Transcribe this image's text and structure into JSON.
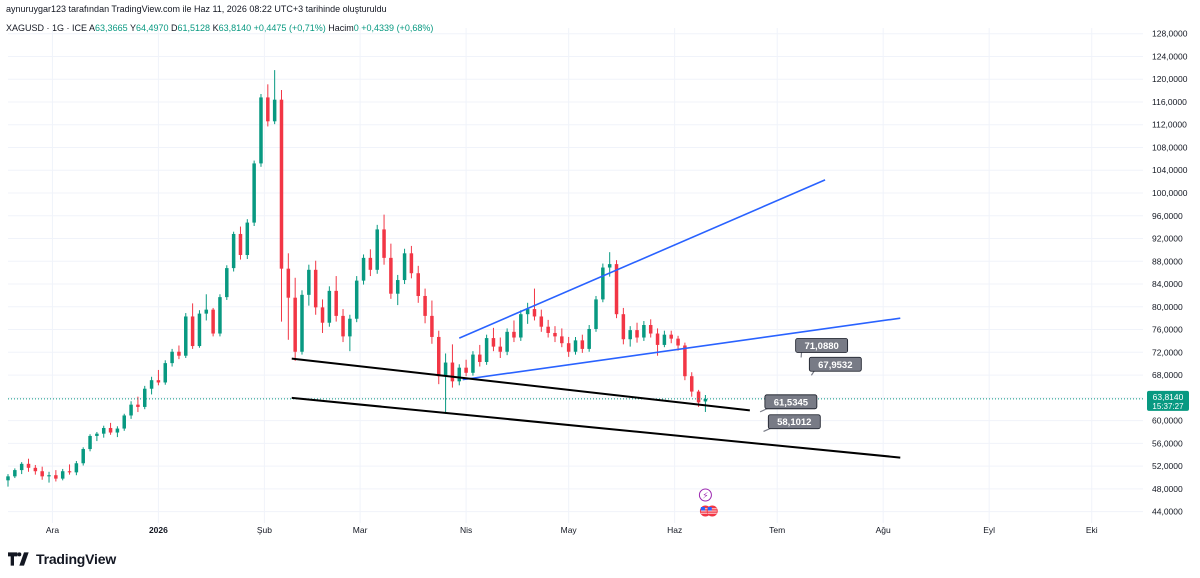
{
  "header": {
    "attribution": "aynuruygar123 tarafından TradingView.com ile Haz 11, 2026 08:22 UTC+3 tarihinde oluşturuldu"
  },
  "quote": {
    "symbol": "XAGUSD · 1G · ICE",
    "open_label": "A",
    "open": "63,3665",
    "high_label": "Y",
    "high": "64,4970",
    "low_label": "D",
    "low": "61,5128",
    "close_label": "K",
    "close": "63,8140",
    "change": "+0,4475 (+0,71%)",
    "volume_label": "Hacim",
    "volume": "0",
    "volume_change": "+0,4339 (+0,68%)"
  },
  "price_tag": {
    "price": "63,8140",
    "countdown": "15:37:27",
    "color": "#089981"
  },
  "brand": {
    "name": "TradingView"
  },
  "colors": {
    "up": "#089981",
    "down": "#f23645",
    "trendline_blue": "#2962ff",
    "trendline_black": "#000000",
    "label_box": "#787b86"
  },
  "chart_data": {
    "type": "candlestick",
    "y_axis": {
      "min": 42,
      "max": 129,
      "position": "right",
      "ticks": [
        "44,0000",
        "48,0000",
        "52,0000",
        "56,0000",
        "60,0000",
        "64,0000",
        "68,0000",
        "72,0000",
        "76,0000",
        "80,0000",
        "84,0000",
        "88,0000",
        "92,0000",
        "96,0000",
        "100,0000",
        "104,0000",
        "108,0000",
        "112,0000",
        "116,0000",
        "120,0000",
        "124,0000",
        "128,0000"
      ],
      "tick_values": [
        44,
        48,
        52,
        56,
        60,
        64,
        68,
        72,
        76,
        80,
        84,
        88,
        92,
        96,
        100,
        104,
        108,
        112,
        116,
        120,
        124,
        128
      ]
    },
    "x_axis": {
      "labels": [
        "Ara",
        "2026",
        "Şub",
        "Mar",
        "Nis",
        "May",
        "Haz",
        "Tem",
        "Ağu",
        "Eyl",
        "Eki"
      ],
      "label_dates": [
        "2025-12-01",
        "2026-01-01",
        "2026-02-01",
        "2026-03-01",
        "2026-04-01",
        "2026-05-01",
        "2026-06-01",
        "2026-07-01",
        "2026-08-01",
        "2026-09-01",
        "2026-10-01"
      ]
    },
    "grid": true,
    "close_price_line": 63.814,
    "candles": [
      [
        "2025-11-18",
        49.5,
        50.6,
        48.4,
        50.2
      ],
      [
        "2025-11-20",
        50.2,
        51.6,
        49.9,
        51.3
      ],
      [
        "2025-11-22",
        51.3,
        52.7,
        50.6,
        52.4
      ],
      [
        "2025-11-24",
        52.4,
        53.3,
        51.0,
        51.7
      ],
      [
        "2025-11-26",
        51.7,
        52.2,
        50.5,
        51.1
      ],
      [
        "2025-11-28",
        51.1,
        51.9,
        49.6,
        50.2
      ],
      [
        "2025-11-30",
        50.2,
        51.0,
        49.1,
        50.4
      ],
      [
        "2025-12-02",
        50.4,
        51.3,
        49.3,
        49.8
      ],
      [
        "2025-12-04",
        49.8,
        51.5,
        49.5,
        51.1
      ],
      [
        "2025-12-06",
        51.1,
        52.3,
        50.5,
        50.9
      ],
      [
        "2025-12-08",
        50.9,
        52.9,
        50.4,
        52.5
      ],
      [
        "2025-12-10",
        52.5,
        55.3,
        52.1,
        55.0
      ],
      [
        "2025-12-12",
        55.0,
        57.6,
        54.6,
        57.3
      ],
      [
        "2025-12-14",
        57.3,
        58.0,
        56.4,
        57.7
      ],
      [
        "2025-12-16",
        57.7,
        59.1,
        57.0,
        58.7
      ],
      [
        "2025-12-18",
        58.7,
        59.6,
        57.5,
        57.9
      ],
      [
        "2025-12-20",
        57.9,
        59.0,
        57.1,
        58.6
      ],
      [
        "2025-12-22",
        58.6,
        61.2,
        58.2,
        60.9
      ],
      [
        "2025-12-24",
        60.9,
        63.4,
        60.3,
        62.8
      ],
      [
        "2025-12-26",
        62.8,
        64.2,
        61.5,
        62.4
      ],
      [
        "2025-12-28",
        62.4,
        66.1,
        62.0,
        65.6
      ],
      [
        "2025-12-30",
        65.6,
        67.7,
        64.6,
        67.1
      ],
      [
        "2026-01-01",
        67.1,
        68.9,
        66.2,
        66.7
      ],
      [
        "2026-01-03",
        66.7,
        70.6,
        66.3,
        70.1
      ],
      [
        "2026-01-05",
        70.1,
        72.6,
        69.5,
        72.1
      ],
      [
        "2026-01-07",
        72.1,
        73.2,
        70.8,
        71.4
      ],
      [
        "2026-01-09",
        71.4,
        78.9,
        71.0,
        78.3
      ],
      [
        "2026-01-11",
        78.3,
        80.6,
        72.6,
        73.1
      ],
      [
        "2026-01-13",
        73.1,
        79.4,
        72.8,
        78.8
      ],
      [
        "2026-01-15",
        78.8,
        82.2,
        77.6,
        79.5
      ],
      [
        "2026-01-17",
        79.5,
        79.8,
        74.8,
        75.3
      ],
      [
        "2026-01-19",
        75.3,
        82.2,
        74.8,
        81.7
      ],
      [
        "2026-01-21",
        81.7,
        87.3,
        81.2,
        86.8
      ],
      [
        "2026-01-23",
        86.8,
        93.2,
        86.2,
        92.8
      ],
      [
        "2026-01-25",
        92.8,
        94.1,
        88.3,
        89.1
      ],
      [
        "2026-01-27",
        89.1,
        95.4,
        88.4,
        94.8
      ],
      [
        "2026-01-29",
        94.8,
        105.7,
        94.2,
        105.2
      ],
      [
        "2026-01-31",
        105.2,
        117.4,
        104.6,
        116.8
      ],
      [
        "2026-02-02",
        116.8,
        119.1,
        111.7,
        112.6
      ],
      [
        "2026-02-04",
        112.6,
        121.6,
        112.1,
        116.4
      ],
      [
        "2026-02-06",
        116.4,
        118.1,
        77.4,
        86.7
      ],
      [
        "2026-02-08",
        86.7,
        89.4,
        74.2,
        81.6
      ],
      [
        "2026-02-10",
        81.6,
        85.1,
        70.5,
        72.1
      ],
      [
        "2026-02-12",
        72.1,
        82.9,
        71.6,
        82.1
      ],
      [
        "2026-02-14",
        82.1,
        87.4,
        80.2,
        86.5
      ],
      [
        "2026-02-16",
        86.5,
        88.1,
        78.6,
        79.9
      ],
      [
        "2026-02-18",
        79.9,
        81.3,
        75.4,
        77.2
      ],
      [
        "2026-02-20",
        77.2,
        83.6,
        76.5,
        82.8
      ],
      [
        "2026-02-22",
        82.8,
        85.4,
        77.4,
        78.4
      ],
      [
        "2026-02-24",
        78.4,
        79.6,
        73.8,
        74.8
      ],
      [
        "2026-02-26",
        74.8,
        78.6,
        72.2,
        77.9
      ],
      [
        "2026-02-28",
        77.9,
        85.4,
        77.3,
        84.6
      ],
      [
        "2026-03-02",
        84.6,
        89.2,
        83.9,
        88.6
      ],
      [
        "2026-03-04",
        88.6,
        90.1,
        85.4,
        86.5
      ],
      [
        "2026-03-06",
        86.5,
        94.4,
        85.8,
        93.6
      ],
      [
        "2026-03-08",
        93.6,
        96.2,
        87.4,
        88.6
      ],
      [
        "2026-03-10",
        88.6,
        91.1,
        81.4,
        82.3
      ],
      [
        "2026-03-12",
        82.3,
        85.6,
        80.3,
        84.7
      ],
      [
        "2026-03-14",
        84.7,
        90.2,
        84.0,
        89.4
      ],
      [
        "2026-03-16",
        89.4,
        90.7,
        85.0,
        85.9
      ],
      [
        "2026-03-18",
        85.9,
        87.2,
        80.7,
        81.9
      ],
      [
        "2026-03-20",
        81.9,
        83.2,
        77.1,
        78.4
      ],
      [
        "2026-03-22",
        78.4,
        81.1,
        73.5,
        74.7
      ],
      [
        "2026-03-24",
        74.7,
        75.8,
        66.4,
        67.8
      ],
      [
        "2026-03-26",
        67.8,
        71.8,
        61.2,
        70.2
      ],
      [
        "2026-03-28",
        70.2,
        73.4,
        65.8,
        66.9
      ],
      [
        "2026-03-30",
        66.9,
        69.9,
        66.2,
        69.3
      ],
      [
        "2026-04-01",
        69.3,
        70.7,
        67.8,
        68.4
      ],
      [
        "2026-04-03",
        68.4,
        72.2,
        67.9,
        71.6
      ],
      [
        "2026-04-05",
        71.6,
        73.3,
        69.5,
        70.3
      ],
      [
        "2026-04-07",
        70.3,
        75.1,
        69.8,
        74.5
      ],
      [
        "2026-04-09",
        74.5,
        76.3,
        72.2,
        73.0
      ],
      [
        "2026-04-11",
        73.0,
        74.6,
        71.0,
        72.1
      ],
      [
        "2026-04-13",
        72.1,
        76.2,
        71.5,
        75.6
      ],
      [
        "2026-04-15",
        75.6,
        77.6,
        73.8,
        74.6
      ],
      [
        "2026-04-17",
        74.6,
        79.4,
        74.0,
        78.7
      ],
      [
        "2026-04-19",
        78.7,
        80.7,
        77.0,
        79.6
      ],
      [
        "2026-04-21",
        79.6,
        83.2,
        77.6,
        78.3
      ],
      [
        "2026-04-23",
        78.3,
        79.5,
        75.6,
        76.5
      ],
      [
        "2026-04-25",
        76.5,
        77.7,
        74.6,
        75.4
      ],
      [
        "2026-04-27",
        75.4,
        76.6,
        73.8,
        74.8
      ],
      [
        "2026-04-29",
        74.8,
        76.2,
        72.9,
        73.6
      ],
      [
        "2026-05-01",
        73.6,
        74.7,
        71.2,
        72.1
      ],
      [
        "2026-05-03",
        72.1,
        74.7,
        71.6,
        74.1
      ],
      [
        "2026-05-05",
        74.1,
        75.1,
        71.9,
        72.6
      ],
      [
        "2026-05-07",
        72.6,
        76.8,
        72.1,
        76.1
      ],
      [
        "2026-05-09",
        76.1,
        81.9,
        75.6,
        81.3
      ],
      [
        "2026-05-11",
        81.3,
        87.6,
        80.8,
        86.9
      ],
      [
        "2026-05-13",
        86.9,
        89.6,
        85.3,
        87.5
      ],
      [
        "2026-05-15",
        87.5,
        88.2,
        78.0,
        78.7
      ],
      [
        "2026-05-17",
        78.7,
        79.8,
        73.4,
        74.3
      ],
      [
        "2026-05-19",
        74.3,
        76.6,
        73.0,
        75.9
      ],
      [
        "2026-05-21",
        75.9,
        77.2,
        73.7,
        74.6
      ],
      [
        "2026-05-23",
        74.6,
        77.5,
        74.0,
        76.8
      ],
      [
        "2026-05-25",
        76.8,
        77.8,
        74.6,
        75.3
      ],
      [
        "2026-05-27",
        75.3,
        76.2,
        71.4,
        73.3
      ],
      [
        "2026-05-29",
        73.3,
        75.8,
        72.9,
        75.1
      ],
      [
        "2026-05-31",
        75.1,
        75.8,
        73.6,
        74.4
      ],
      [
        "2026-06-02",
        74.4,
        74.9,
        72.3,
        73.2
      ],
      [
        "2026-06-04",
        73.2,
        73.7,
        67.1,
        67.8
      ],
      [
        "2026-06-06",
        67.8,
        68.5,
        64.2,
        65.1
      ],
      [
        "2026-06-08",
        65.1,
        65.4,
        62.4,
        63.2
      ],
      [
        "2026-06-10",
        63.3665,
        64.497,
        61.5128,
        63.814
      ]
    ],
    "trendlines": [
      {
        "name": "upper-blue",
        "color": "#2962ff",
        "from": [
          "2026-03-30",
          74.5
        ],
        "to": [
          "2026-07-15",
          102.3
        ]
      },
      {
        "name": "middle-blue",
        "color": "#2962ff",
        "from": [
          "2026-03-31",
          67.2
        ],
        "to": [
          "2026-08-06",
          78.0
        ]
      },
      {
        "name": "black-upper",
        "color": "#000000",
        "from": [
          "2026-02-09",
          70.9
        ],
        "to": [
          "2026-06-23",
          61.8
        ]
      },
      {
        "name": "black-lower",
        "color": "#000000",
        "from": [
          "2026-02-09",
          64.0
        ],
        "to": [
          "2026-08-06",
          53.5
        ]
      }
    ],
    "price_labels": [
      {
        "text": "71,0880",
        "at": [
          "2026-07-14",
          73.2
        ],
        "pointer": [
          "2026-07-08",
          71.09
        ]
      },
      {
        "text": "67,9532",
        "at": [
          "2026-07-18",
          69.9
        ],
        "pointer": [
          "2026-07-11",
          67.95
        ]
      },
      {
        "text": "61,5345",
        "at": [
          "2026-07-05",
          63.3
        ],
        "pointer": [
          "2026-06-26",
          61.53
        ]
      },
      {
        "text": "58,1012",
        "at": [
          "2026-07-06",
          59.8
        ],
        "pointer": [
          "2026-06-27",
          58.1
        ]
      }
    ],
    "event_markers": [
      {
        "name": "lightning-icon",
        "date": "2026-06-10",
        "symbol": "⚡"
      },
      {
        "name": "us-flag-icon",
        "date": "2026-06-10",
        "symbol": "flag"
      },
      {
        "name": "us-flag-icon",
        "date": "2026-06-12",
        "symbol": "flag"
      }
    ]
  }
}
